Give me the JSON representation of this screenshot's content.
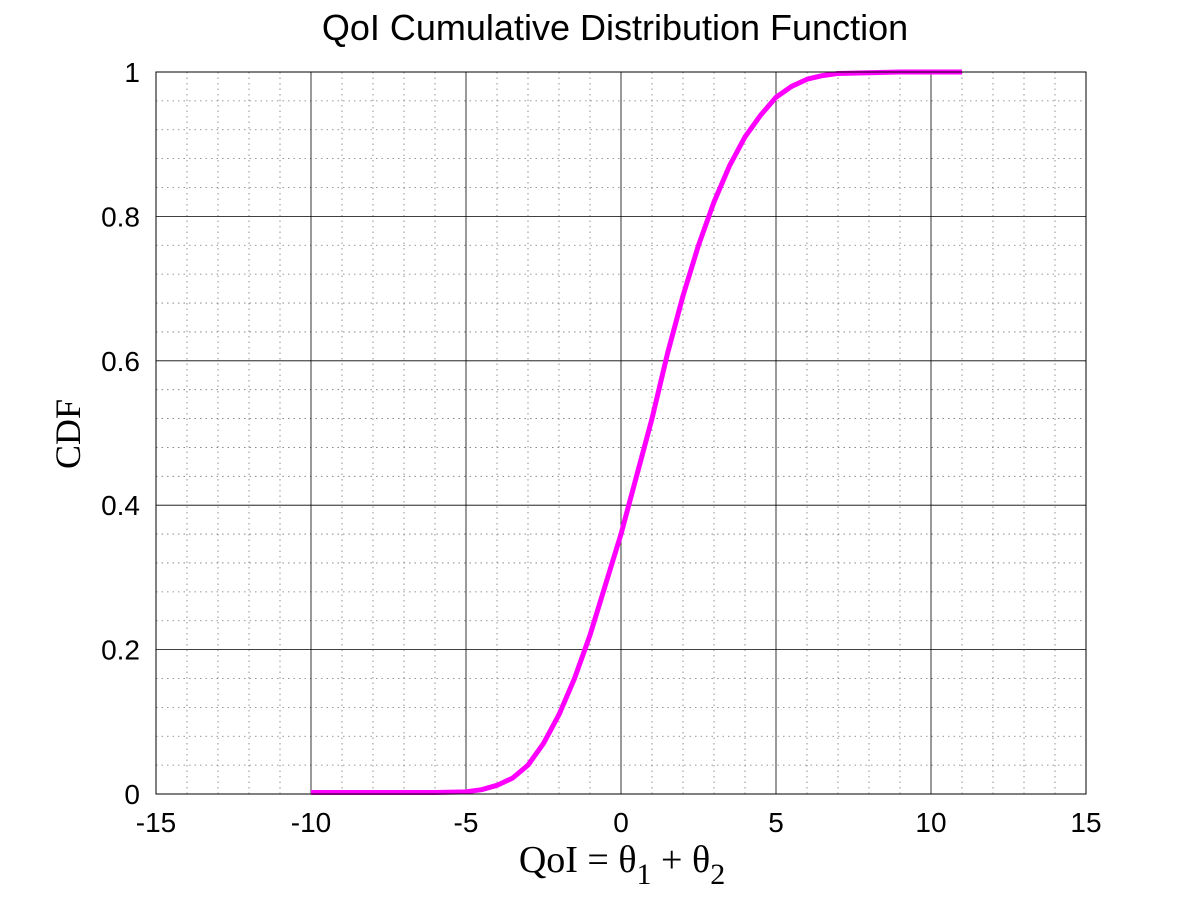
{
  "chart_data": {
    "type": "line",
    "title": "QoI Cumulative Distribution Function",
    "xlabel": {
      "prefix": "QoI = ",
      "theta": "θ",
      "sub1": "1",
      "plus": " + ",
      "sub2": "2"
    },
    "ylabel": "CDF",
    "xlim": [
      -15,
      15
    ],
    "ylim": [
      0,
      1
    ],
    "xticks": [
      -15,
      -10,
      -5,
      0,
      5,
      10,
      15
    ],
    "yticks": [
      0,
      0.2,
      0.4,
      0.6,
      0.8,
      1
    ],
    "xtick_labels": [
      "-15",
      "-10",
      "-5",
      "0",
      "5",
      "10",
      "15"
    ],
    "ytick_labels": [
      "0",
      "0.2",
      "0.4",
      "0.6",
      "0.8",
      "1"
    ],
    "grid": true,
    "minor_grid": true,
    "series": [
      {
        "color": "#ff00ff",
        "x": [
          -10,
          -8,
          -6,
          -5,
          -4.5,
          -4,
          -3.5,
          -3,
          -2.5,
          -2,
          -1.5,
          -1,
          -0.5,
          0,
          0.5,
          1,
          1.5,
          2,
          2.5,
          3,
          3.5,
          4,
          4.5,
          5,
          5.5,
          6,
          6.5,
          7,
          8,
          9,
          10,
          11
        ],
        "y": [
          0.002,
          0.002,
          0.002,
          0.003,
          0.006,
          0.012,
          0.022,
          0.04,
          0.07,
          0.11,
          0.16,
          0.22,
          0.29,
          0.36,
          0.44,
          0.52,
          0.61,
          0.69,
          0.76,
          0.82,
          0.87,
          0.91,
          0.94,
          0.965,
          0.98,
          0.99,
          0.995,
          0.998,
          0.999,
          1.0,
          1.0,
          1.0
        ]
      }
    ]
  }
}
